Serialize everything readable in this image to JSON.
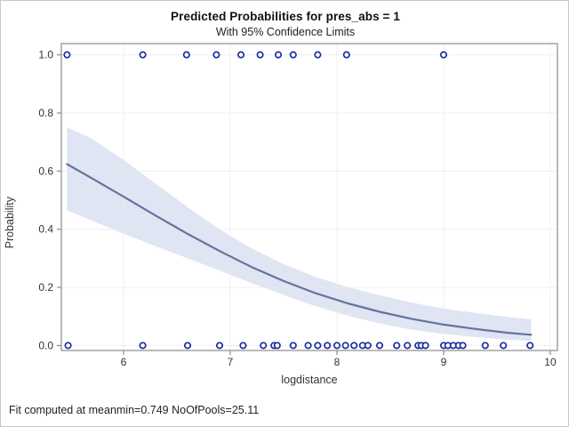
{
  "header": {
    "title": "Predicted Probabilities for pres_abs = 1",
    "subtitle": "With 95% Confidence Limits"
  },
  "footnote": "Fit computed at meanmin=0.749 NoOfPools=25.11",
  "chart_data": {
    "type": "line",
    "title": "Predicted Probabilities for pres_abs = 1",
    "subtitle": "With 95% Confidence Limits",
    "xlabel": "logdistance",
    "ylabel": "Probability",
    "xlim": [
      5.417,
      10.067
    ],
    "ylim": [
      -0.017,
      1.0385
    ],
    "x_ticks": [
      6,
      7,
      8,
      9,
      10
    ],
    "x_tick_labels": [
      "6",
      "7",
      "8",
      "9",
      "10"
    ],
    "y_ticks": [
      0.0,
      0.2,
      0.4,
      0.6,
      0.8,
      1.0
    ],
    "y_tick_labels": [
      "0.0",
      "0.2",
      "0.4",
      "0.6",
      "0.8",
      "1.0"
    ],
    "grid": true,
    "legend": "none",
    "series": [
      {
        "name": "confidence-band-95pct",
        "type": "band",
        "x": [
          5.47,
          5.7,
          6.0,
          6.3,
          6.6,
          6.9,
          7.2,
          7.5,
          7.8,
          8.1,
          8.4,
          8.7,
          9.0,
          9.3,
          9.6,
          9.82
        ],
        "upper": [
          0.75,
          0.712,
          0.638,
          0.557,
          0.476,
          0.4,
          0.334,
          0.28,
          0.236,
          0.201,
          0.173,
          0.148,
          0.127,
          0.112,
          0.098,
          0.09
        ],
        "lower": [
          0.465,
          0.43,
          0.385,
          0.342,
          0.3,
          0.258,
          0.215,
          0.174,
          0.135,
          0.103,
          0.076,
          0.055,
          0.04,
          0.029,
          0.02,
          0.016
        ]
      },
      {
        "name": "predicted-probability-fit",
        "type": "line",
        "x": [
          5.47,
          5.7,
          6.0,
          6.3,
          6.6,
          6.9,
          7.2,
          7.5,
          7.8,
          8.1,
          8.4,
          8.7,
          9.0,
          9.3,
          9.6,
          9.82
        ],
        "y": [
          0.624,
          0.576,
          0.512,
          0.447,
          0.384,
          0.325,
          0.27,
          0.222,
          0.18,
          0.145,
          0.116,
          0.092,
          0.072,
          0.057,
          0.044,
          0.037
        ]
      },
      {
        "name": "observations-present",
        "type": "scatter",
        "y": 1.0,
        "x": [
          5.47,
          6.18,
          6.59,
          6.87,
          7.1,
          7.28,
          7.45,
          7.59,
          7.82,
          8.09,
          9.0
        ]
      },
      {
        "name": "observations-absent",
        "type": "scatter",
        "y": 0.0,
        "x": [
          5.48,
          6.18,
          6.6,
          6.9,
          7.12,
          7.31,
          7.41,
          7.44,
          7.59,
          7.73,
          7.82,
          7.91,
          8.0,
          8.08,
          8.16,
          8.24,
          8.29,
          8.4,
          8.56,
          8.66,
          8.76,
          8.79,
          8.83,
          9.0,
          9.04,
          9.09,
          9.14,
          9.18,
          9.39,
          9.56,
          9.81
        ]
      }
    ],
    "colors": {
      "fit_line": "#62749e",
      "band_fill": "#d9e1f0",
      "marker": "#1e2f9e",
      "marker_fill": "#ffffff",
      "grid": "#e9e9e9",
      "frame": "#8c8c8c",
      "tick": "#8c8c8c",
      "background": "#ffffff"
    }
  }
}
